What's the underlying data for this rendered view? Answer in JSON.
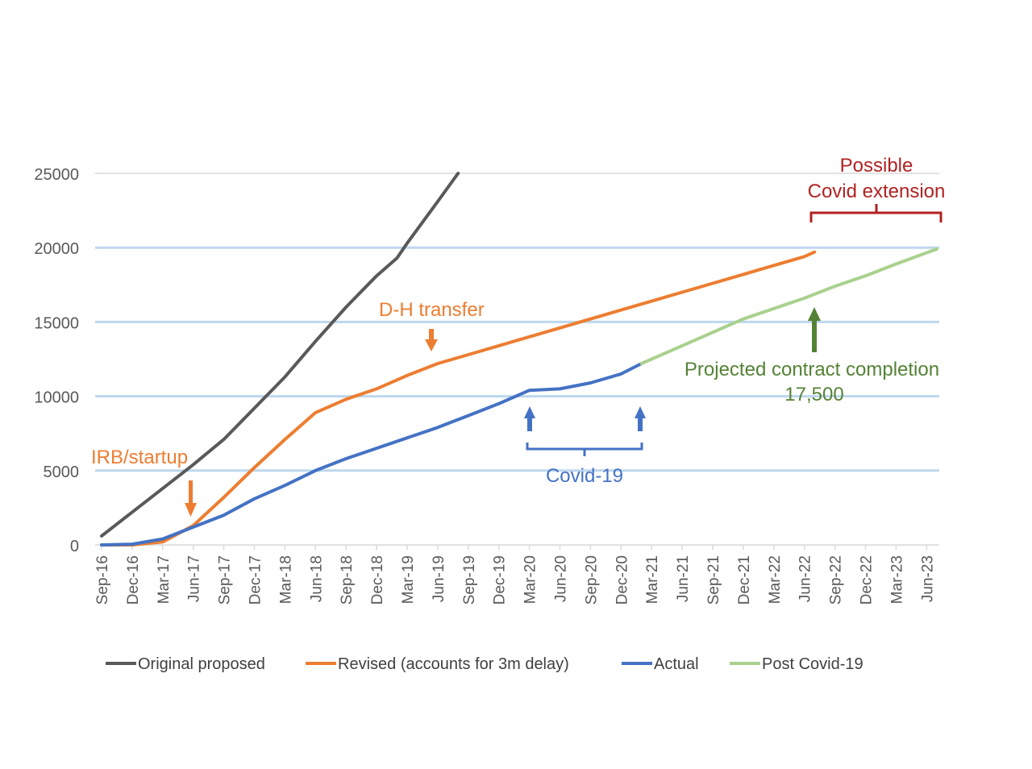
{
  "chart_data": {
    "type": "line",
    "title": "",
    "xlabel": "",
    "ylabel": "",
    "ylim": [
      0,
      25000
    ],
    "y_ticks": [
      0,
      5000,
      10000,
      15000,
      20000,
      25000
    ],
    "x_ticks": [
      "Sep-16",
      "Dec-16",
      "Mar-17",
      "Jun-17",
      "Sep-17",
      "Dec-17",
      "Mar-18",
      "Jun-18",
      "Sep-18",
      "Dec-18",
      "Mar-19",
      "Jun-19",
      "Sep-19",
      "Dec-19",
      "Mar-20",
      "Jun-20",
      "Sep-20",
      "Dec-20",
      "Mar-21",
      "Jun-21",
      "Sep-21",
      "Dec-21",
      "Mar-22",
      "Jun-22",
      "Sep-22",
      "Dec-22",
      "Mar-23",
      "Jun-23"
    ],
    "grid": "horizontal",
    "legend_position": "bottom",
    "series": [
      {
        "name": "Original proposed",
        "color": "#595959",
        "x": [
          "Sep-16",
          "Dec-16",
          "Mar-17",
          "Jun-17",
          "Sep-17",
          "Dec-17",
          "Mar-18",
          "Jun-18",
          "Sep-18",
          "Dec-18",
          "Feb-19",
          "Mar-19",
          "Jun-19",
          "Aug-19"
        ],
        "values": [
          600,
          2200,
          3800,
          5400,
          7100,
          9200,
          11300,
          13700,
          16000,
          18100,
          19300,
          20300,
          23100,
          25000
        ]
      },
      {
        "name": "Revised (accounts for 3m delay)",
        "color": "#ED7D31",
        "x": [
          "Sep-16",
          "Dec-16",
          "Mar-17",
          "Jun-17",
          "Sep-17",
          "Dec-17",
          "Mar-18",
          "Jun-18",
          "Jul-18",
          "Sep-18",
          "Dec-18",
          "Mar-19",
          "Jun-19",
          "Sep-19",
          "Dec-19",
          "Mar-20",
          "Jun-20",
          "Sep-20",
          "Dec-20",
          "Mar-21",
          "Jun-21",
          "Sep-21",
          "Dec-21",
          "Mar-22",
          "Jun-22",
          "Jul-22"
        ],
        "values": [
          0,
          0,
          200,
          1300,
          3200,
          5200,
          7100,
          8900,
          9200,
          9800,
          10500,
          11400,
          12200,
          12800,
          13400,
          14000,
          14600,
          15200,
          15800,
          16400,
          17000,
          17600,
          18200,
          18800,
          19400,
          19700
        ]
      },
      {
        "name": "Actual",
        "color": "#4472C4",
        "x": [
          "Sep-16",
          "Dec-16",
          "Mar-17",
          "Jun-17",
          "Sep-17",
          "Dec-17",
          "Mar-18",
          "Jun-18",
          "Sep-18",
          "Dec-18",
          "Mar-19",
          "Jun-19",
          "Sep-19",
          "Dec-19",
          "Mar-20",
          "Jun-20",
          "Sep-20",
          "Dec-20",
          "Feb-21"
        ],
        "values": [
          0,
          50,
          400,
          1200,
          2000,
          3100,
          4000,
          5000,
          5800,
          6500,
          7200,
          7900,
          8700,
          9500,
          10400,
          10500,
          10900,
          11500,
          12200
        ]
      },
      {
        "name": "Post Covid-19",
        "color": "#A9D18E",
        "x": [
          "Feb-21",
          "Jun-21",
          "Sep-21",
          "Dec-21",
          "Mar-22",
          "Jun-22",
          "Sep-22",
          "Dec-22",
          "Mar-23",
          "Jul-23"
        ],
        "values": [
          12200,
          13400,
          14300,
          15200,
          15900,
          16600,
          17400,
          18100,
          18900,
          19900
        ]
      }
    ],
    "annotations": [
      {
        "id": "irb",
        "text": "IRB/startup",
        "color": "#ED7D31"
      },
      {
        "id": "dh",
        "text": "D-H transfer",
        "color": "#ED7D31"
      },
      {
        "id": "covid",
        "text": "Covid-19",
        "color": "#4472C4"
      },
      {
        "id": "projected_line1",
        "text": "Projected contract completion",
        "color": "#548235"
      },
      {
        "id": "projected_line2",
        "text": "17,500",
        "color": "#548235"
      },
      {
        "id": "extension_line1",
        "text": "Possible",
        "color": "#B22222"
      },
      {
        "id": "extension_line2",
        "text": "Covid extension",
        "color": "#B22222"
      }
    ]
  }
}
